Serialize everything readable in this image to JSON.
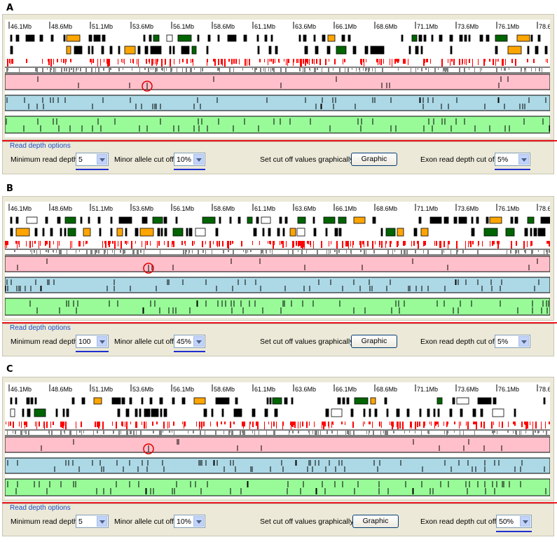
{
  "panels": [
    {
      "label": "A",
      "axis_ticks": [
        "46.1Mb",
        "48.6Mb",
        "51.1Mb",
        "53.6Mb",
        "56.1Mb",
        "58.6Mb",
        "61.1Mb",
        "63.6Mb",
        "66.1Mb",
        "68.6Mb",
        "71.1Mb",
        "73.6Mb",
        "76.1Mb",
        "78.6"
      ],
      "options": {
        "title": "Read depth options",
        "min_read_depth_label": "Minimum read depth",
        "min_read_depth_value": "5",
        "minor_allele_label": "Minor allele cut off",
        "minor_allele_value": "10%",
        "graphic_label": "Set cut off values graphically",
        "graphic_button": "Graphic",
        "exon_label": "Exon read depth cut off",
        "exon_value": "5%"
      }
    },
    {
      "label": "B",
      "axis_ticks": [
        "46.1Mb",
        "48.6Mb",
        "51.1Mb",
        "53.6Mb",
        "56.1Mb",
        "58.6Mb",
        "61.1Mb",
        "63.6Mb",
        "66.1Mb",
        "68.6Mb",
        "71.1Mb",
        "73.6Mb",
        "76.1Mb",
        "78.6"
      ],
      "options": {
        "title": "Read depth options",
        "min_read_depth_label": "Minimum read depth",
        "min_read_depth_value": "100",
        "minor_allele_label": "Minor allele cut off",
        "minor_allele_value": "45%",
        "graphic_label": "Set cut off values graphically",
        "graphic_button": "Graphic",
        "exon_label": "Exon read depth cut off",
        "exon_value": "5%"
      }
    },
    {
      "label": "C",
      "axis_ticks": [
        "46.1Mb",
        "48.6Mb",
        "51.1Mb",
        "53.6Mb",
        "56.1Mb",
        "58.6Mb",
        "61.1Mb",
        "63.6Mb",
        "66.1Mb",
        "68.6Mb",
        "71.1Mb",
        "73.6Mb",
        "76.1Mb",
        "78.6"
      ],
      "options": {
        "title": "Read depth options",
        "min_read_depth_label": "Minimum read depth",
        "min_read_depth_value": "5",
        "minor_allele_label": "Minor allele cut off",
        "minor_allele_value": "10%",
        "graphic_label": "Set cut off values graphically",
        "graphic_button": "Graphic",
        "exon_label": "Exon read depth cut off",
        "exon_value": "50%"
      }
    }
  ],
  "colors": {
    "pink_track": "#ffc0cb",
    "blue_track": "#add8e6",
    "green_track": "#98fb98",
    "exon_red": "#ff0000",
    "exon_gray": "#808080",
    "gene_dark_green": "#006400",
    "gene_orange": "#ffa500",
    "separator_red": "#e8151b",
    "underline_blue": "#1d2fcf"
  }
}
